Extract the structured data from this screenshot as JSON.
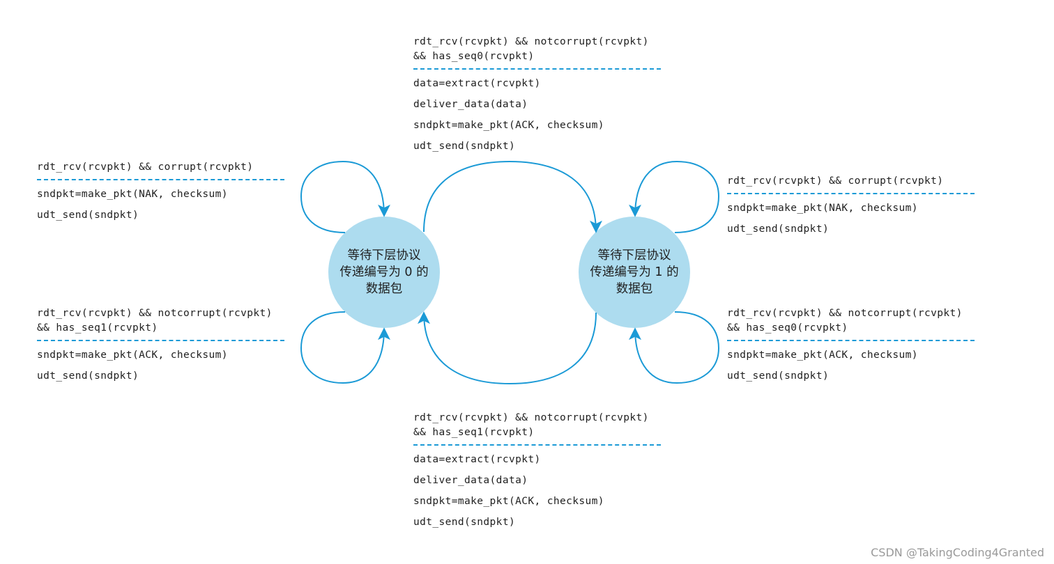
{
  "states": {
    "s0": {
      "label_lines": [
        "等待下层协议",
        "传递编号为 0 的",
        "数据包"
      ]
    },
    "s1": {
      "label_lines": [
        "等待下层协议",
        "传递编号为 1 的",
        "数据包"
      ]
    }
  },
  "transitions": {
    "s0_to_s1": {
      "event": [
        "rdt_rcv(rcvpkt) && notcorrupt(rcvpkt)",
        "&& has_seq0(rcvpkt)"
      ],
      "actions": [
        "data=extract(rcvpkt)",
        "deliver_data(data)",
        "sndpkt=make_pkt(ACK, checksum)",
        "udt_send(sndpkt)"
      ]
    },
    "s1_to_s0": {
      "event": [
        "rdt_rcv(rcvpkt) && notcorrupt(rcvpkt)",
        "&& has_seq1(rcvpkt)"
      ],
      "actions": [
        "data=extract(rcvpkt)",
        "deliver_data(data)",
        "sndpkt=make_pkt(ACK, checksum)",
        "udt_send(sndpkt)"
      ]
    },
    "s0_corrupt": {
      "event": [
        "rdt_rcv(rcvpkt) && corrupt(rcvpkt)"
      ],
      "actions": [
        "sndpkt=make_pkt(NAK, checksum)",
        "udt_send(sndpkt)"
      ]
    },
    "s0_dup": {
      "event": [
        "rdt_rcv(rcvpkt) && notcorrupt(rcvpkt)",
        "&& has_seq1(rcvpkt)"
      ],
      "actions": [
        "sndpkt=make_pkt(ACK, checksum)",
        "udt_send(sndpkt)"
      ]
    },
    "s1_corrupt": {
      "event": [
        "rdt_rcv(rcvpkt) && corrupt(rcvpkt)"
      ],
      "actions": [
        "sndpkt=make_pkt(NAK, checksum)",
        "udt_send(sndpkt)"
      ]
    },
    "s1_dup": {
      "event": [
        "rdt_rcv(rcvpkt) && notcorrupt(rcvpkt)",
        "&& has_seq0(rcvpkt)"
      ],
      "actions": [
        "sndpkt=make_pkt(ACK, checksum)",
        "udt_send(sndpkt)"
      ]
    }
  },
  "watermark": "CSDN @TakingCoding4Granted",
  "colors": {
    "state_fill": "#addcef",
    "arrow": "#1b9ad6",
    "separator": "#1b9ad6",
    "text": "#1f1f1f"
  }
}
